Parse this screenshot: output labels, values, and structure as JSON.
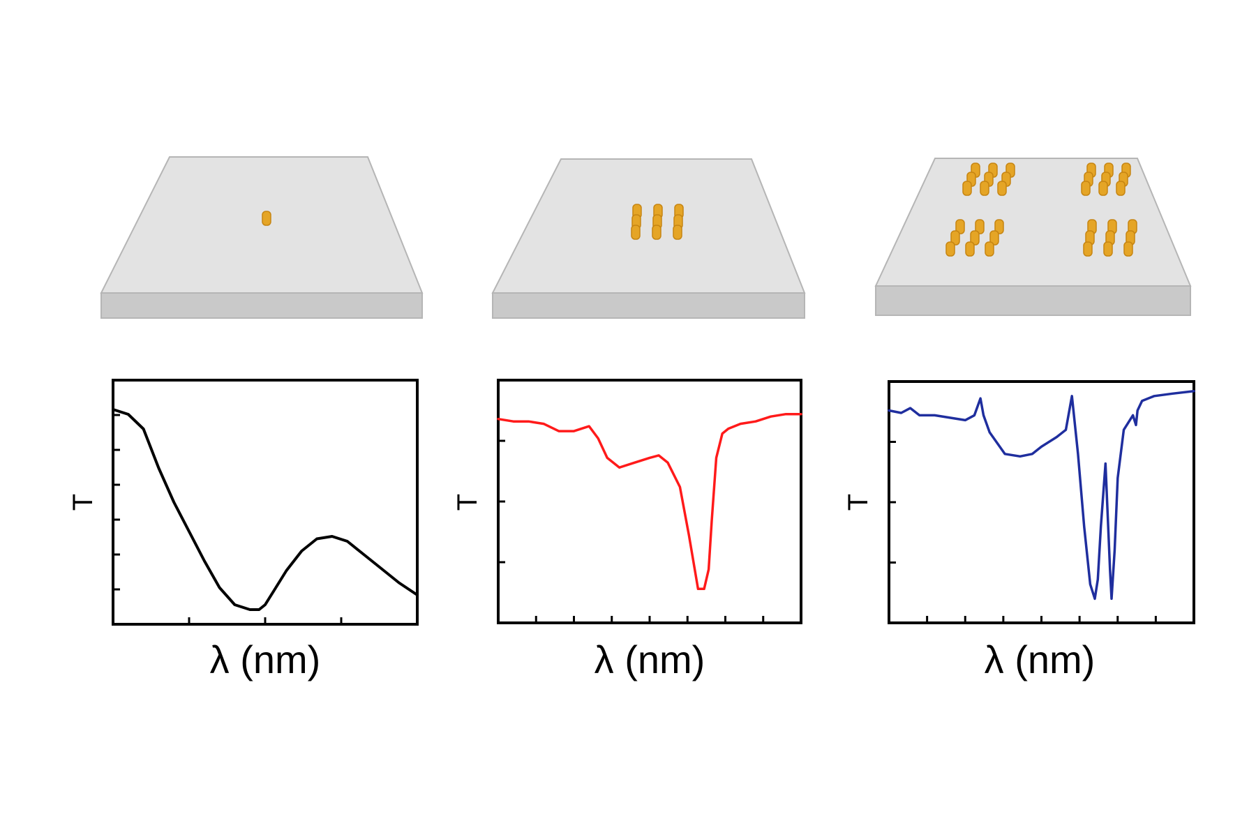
{
  "colors": {
    "substrate_top": "#e3e3e3",
    "substrate_front": "#c9c9c9",
    "substrate_edge": "#b5b5b5",
    "particle": "#e5a526",
    "particle_dark": "#c68512",
    "frame": "#000000"
  },
  "chart_data": [
    {
      "type": "line",
      "xlabel": "λ (nm)",
      "ylabel": "T",
      "color": "#000000",
      "xlim": [
        0,
        1
      ],
      "ylim": [
        0,
        1
      ],
      "series": [
        {
          "x": [
            0.0,
            0.05,
            0.1,
            0.15,
            0.2,
            0.25,
            0.3,
            0.35,
            0.4,
            0.45,
            0.48,
            0.5,
            0.53,
            0.57,
            0.62,
            0.67,
            0.72,
            0.77,
            0.82,
            0.88,
            0.94,
            1.0
          ],
          "y": [
            0.88,
            0.86,
            0.8,
            0.64,
            0.5,
            0.38,
            0.26,
            0.15,
            0.08,
            0.06,
            0.06,
            0.08,
            0.14,
            0.22,
            0.3,
            0.35,
            0.36,
            0.34,
            0.29,
            0.23,
            0.17,
            0.12
          ]
        }
      ]
    },
    {
      "type": "line",
      "xlabel": "λ (nm)",
      "ylabel": "T",
      "color": "#ff1a1a",
      "xlim": [
        0,
        1
      ],
      "ylim": [
        0,
        1
      ],
      "series": [
        {
          "x": [
            0.0,
            0.05,
            0.1,
            0.15,
            0.2,
            0.25,
            0.3,
            0.33,
            0.36,
            0.4,
            0.45,
            0.5,
            0.53,
            0.56,
            0.6,
            0.63,
            0.66,
            0.68,
            0.695,
            0.705,
            0.72,
            0.74,
            0.76,
            0.8,
            0.85,
            0.9,
            0.95,
            1.0
          ],
          "y": [
            0.84,
            0.83,
            0.83,
            0.82,
            0.79,
            0.79,
            0.81,
            0.76,
            0.68,
            0.64,
            0.66,
            0.68,
            0.69,
            0.66,
            0.56,
            0.36,
            0.14,
            0.14,
            0.22,
            0.42,
            0.68,
            0.78,
            0.8,
            0.82,
            0.83,
            0.85,
            0.86,
            0.86
          ]
        }
      ]
    },
    {
      "type": "line",
      "xlabel": "λ (nm)",
      "ylabel": "T",
      "color": "#1f2e9e",
      "xlim": [
        0,
        1
      ],
      "ylim": [
        0,
        1
      ],
      "series": [
        {
          "x": [
            0.0,
            0.04,
            0.07,
            0.1,
            0.15,
            0.2,
            0.25,
            0.28,
            0.3,
            0.31,
            0.33,
            0.38,
            0.43,
            0.47,
            0.5,
            0.55,
            0.58,
            0.6,
            0.62,
            0.64,
            0.66,
            0.675,
            0.685,
            0.695,
            0.71,
            0.725,
            0.73,
            0.74,
            0.75,
            0.77,
            0.8,
            0.81,
            0.815,
            0.83,
            0.87,
            0.93,
            1.0
          ],
          "y": [
            0.88,
            0.87,
            0.89,
            0.86,
            0.86,
            0.85,
            0.84,
            0.86,
            0.93,
            0.86,
            0.79,
            0.7,
            0.69,
            0.7,
            0.73,
            0.77,
            0.8,
            0.94,
            0.7,
            0.4,
            0.16,
            0.1,
            0.18,
            0.4,
            0.66,
            0.22,
            0.1,
            0.3,
            0.6,
            0.8,
            0.86,
            0.82,
            0.88,
            0.92,
            0.94,
            0.95,
            0.96
          ]
        }
      ]
    }
  ]
}
